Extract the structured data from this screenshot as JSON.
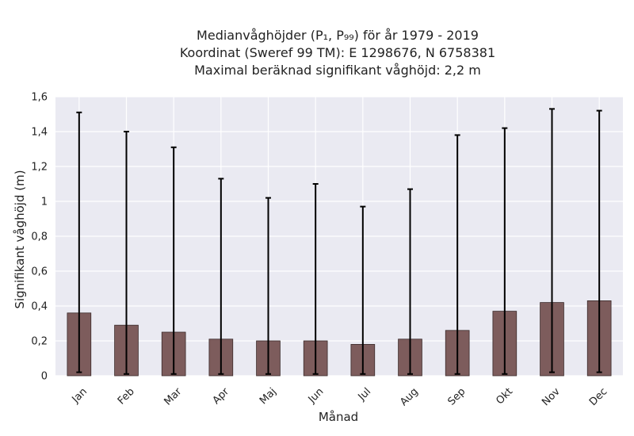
{
  "chart_data": {
    "type": "bar",
    "title_lines": [
      "Medianvåghöjder (P₁, P₉₉) för år 1979 - 2019",
      "Koordinat (Sweref 99 TM): E 1298676, N 6758381",
      "Maximal beräknad signifikant våghöjd: 2,2 m"
    ],
    "xlabel": "Månad",
    "ylabel": "Signifikant våghöjd (m)",
    "categories": [
      "Jan",
      "Feb",
      "Mar",
      "Apr",
      "Maj",
      "Jun",
      "Jul",
      "Aug",
      "Sep",
      "Okt",
      "Nov",
      "Dec"
    ],
    "values": [
      0.36,
      0.29,
      0.25,
      0.21,
      0.2,
      0.2,
      0.18,
      0.21,
      0.26,
      0.37,
      0.42,
      0.43
    ],
    "p1": [
      0.02,
      0.01,
      0.01,
      0.01,
      0.01,
      0.01,
      0.01,
      0.01,
      0.01,
      0.01,
      0.02,
      0.02
    ],
    "p99": [
      1.51,
      1.4,
      1.31,
      1.13,
      1.02,
      1.1,
      0.97,
      1.07,
      1.38,
      1.42,
      1.53,
      1.52
    ],
    "ylim": [
      0,
      1.6
    ],
    "yticks": [
      0,
      0.2,
      0.4,
      0.6,
      0.8,
      1.0,
      1.2,
      1.4,
      1.6
    ],
    "ytick_labels": [
      "0",
      "0,2",
      "0,4",
      "0,6",
      "0,8",
      "1",
      "1,2",
      "1,4",
      "1,6"
    ],
    "grid": true,
    "bar_color": "#7d5c5c",
    "errorbar_color": "#000000",
    "background_color": "#eaeaf2",
    "grid_color": "#ffffff"
  }
}
